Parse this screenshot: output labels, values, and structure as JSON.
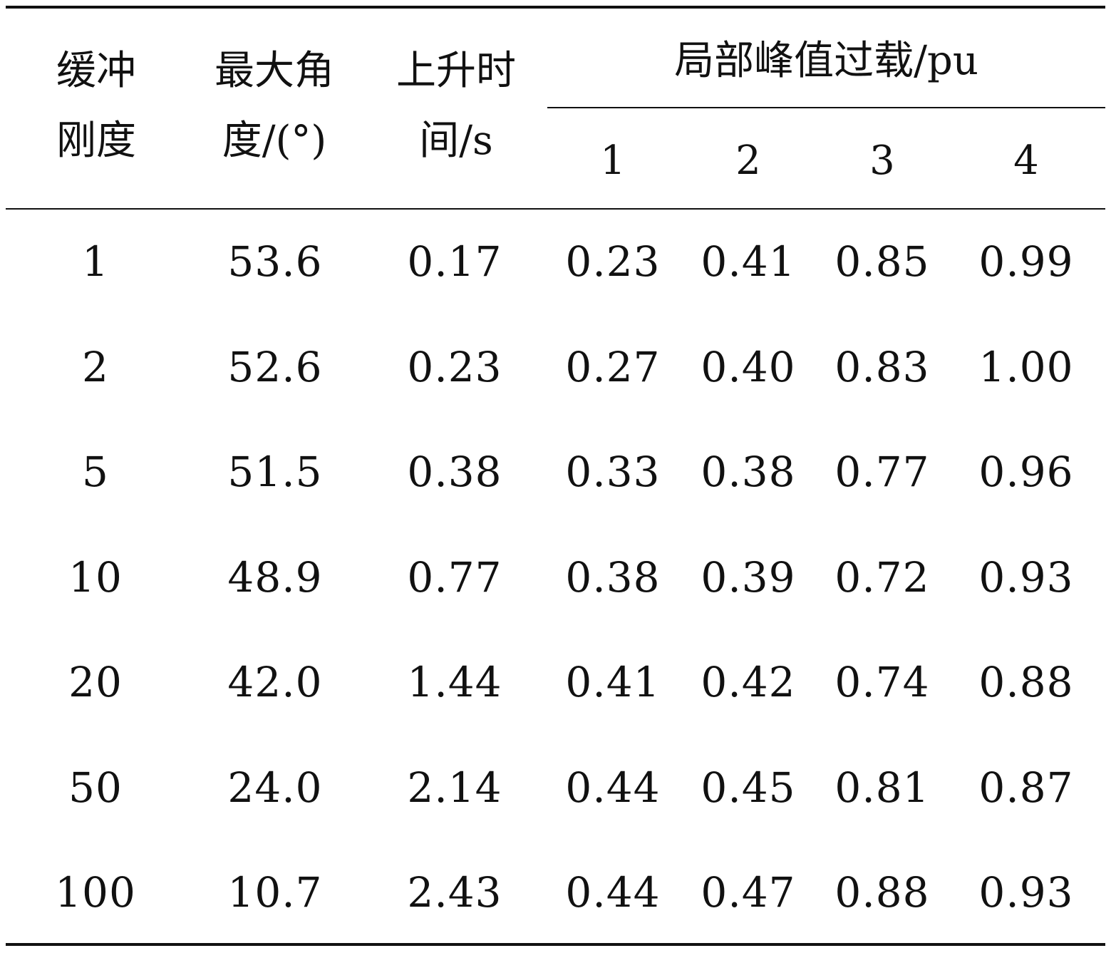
{
  "table": {
    "headers": {
      "col1": [
        "缓冲",
        "刚度"
      ],
      "col2": [
        "最大角",
        "度/(°)"
      ],
      "col3": [
        "上升时",
        "间/s"
      ],
      "group": "局部峰值过载/pu",
      "sub": [
        "1",
        "2",
        "3",
        "4"
      ]
    },
    "rows": [
      [
        "1",
        "53.6",
        "0.17",
        "0.23",
        "0.41",
        "0.85",
        "0.99"
      ],
      [
        "2",
        "52.6",
        "0.23",
        "0.27",
        "0.40",
        "0.83",
        "1.00"
      ],
      [
        "5",
        "51.5",
        "0.38",
        "0.33",
        "0.38",
        "0.77",
        "0.96"
      ],
      [
        "10",
        "48.9",
        "0.77",
        "0.38",
        "0.39",
        "0.72",
        "0.93"
      ],
      [
        "20",
        "42.0",
        "1.44",
        "0.41",
        "0.42",
        "0.74",
        "0.88"
      ],
      [
        "50",
        "24.0",
        "2.14",
        "0.44",
        "0.45",
        "0.81",
        "0.87"
      ],
      [
        "100",
        "10.7",
        "2.43",
        "0.44",
        "0.47",
        "0.88",
        "0.93"
      ]
    ]
  }
}
